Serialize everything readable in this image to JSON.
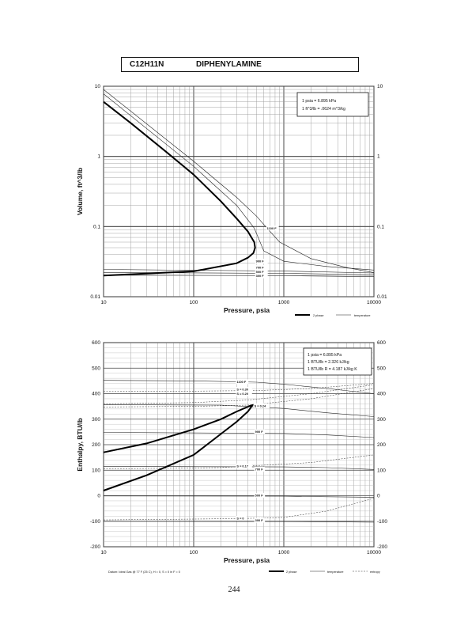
{
  "header": {
    "formula": "C12H11N",
    "compound": "DIPHENYLAMINE"
  },
  "page_number": "244",
  "chart_data": [
    {
      "type": "line",
      "x_scale": "log",
      "y_scale": "log",
      "xlim": [
        10,
        10000
      ],
      "ylim": [
        0.01,
        10
      ],
      "xlabel": "Pressure,  psia",
      "ylabel": "Volume, ft^3/lb",
      "x_ticks": [
        "10",
        "100",
        "1000",
        "10000"
      ],
      "y_ticks": [
        "0.01",
        "0.1",
        "1",
        "10"
      ],
      "y_ticks_right": [
        "0.01",
        "0.1",
        "1",
        "10"
      ],
      "grid": true,
      "notes": [
        "1 psia  =  6.895 kPa",
        "1 ft^3/lb  =  .0624 m^3/kg"
      ],
      "legend": [
        "2 phase",
        "temperature"
      ],
      "legend_position": "bottom-right",
      "labels": [
        "1100 F",
        "900 F",
        "700 F",
        "500 F",
        "300 F"
      ],
      "two_phase": [
        [
          10,
          6.0
        ],
        [
          20,
          3.0
        ],
        [
          50,
          1.15
        ],
        [
          100,
          0.55
        ],
        [
          200,
          0.23
        ],
        [
          300,
          0.13
        ],
        [
          400,
          0.085
        ],
        [
          470,
          0.06
        ],
        [
          480,
          0.05
        ],
        [
          460,
          0.042
        ],
        [
          400,
          0.036
        ],
        [
          300,
          0.03
        ],
        [
          100,
          0.023
        ],
        [
          10,
          0.02
        ]
      ],
      "series": [
        {
          "name": "1100 F",
          "points": [
            [
              10,
              9.0
            ],
            [
              100,
              0.85
            ],
            [
              300,
              0.26
            ],
            [
              500,
              0.14
            ],
            [
              650,
              0.095
            ],
            [
              900,
              0.06
            ],
            [
              2000,
              0.035
            ],
            [
              5000,
              0.026
            ],
            [
              10000,
              0.022
            ]
          ]
        },
        {
          "name": "900 F",
          "points": [
            [
              10,
              7.8
            ],
            [
              100,
              0.72
            ],
            [
              300,
              0.2
            ],
            [
              470,
              0.095
            ],
            [
              600,
              0.045
            ],
            [
              1000,
              0.032
            ],
            [
              3000,
              0.027
            ],
            [
              10000,
              0.024
            ]
          ]
        },
        {
          "name": "700 F",
          "points": [
            [
              10,
              0.0245
            ],
            [
              1000,
              0.0232
            ],
            [
              10000,
              0.0218
            ]
          ]
        },
        {
          "name": "500 F",
          "points": [
            [
              10,
              0.0222
            ],
            [
              1000,
              0.0215
            ],
            [
              10000,
              0.0206
            ]
          ]
        },
        {
          "name": "300 F",
          "points": [
            [
              10,
              0.0205
            ],
            [
              1000,
              0.0199
            ],
            [
              10000,
              0.0193
            ]
          ]
        }
      ]
    },
    {
      "type": "line",
      "x_scale": "log",
      "xlim": [
        10,
        10000
      ],
      "ylim": [
        -200,
        600
      ],
      "xlabel": "Pressure,  psia",
      "ylabel": "Enthalpy, BTU/lb",
      "x_ticks": [
        "10",
        "100",
        "1000",
        "10000"
      ],
      "y_ticks": [
        "-200",
        "-100",
        "0",
        "100",
        "200",
        "300",
        "400",
        "500",
        "600"
      ],
      "y_ticks_right": [
        "-200",
        "-100",
        "0",
        "100",
        "200",
        "300",
        "400",
        "500",
        "600"
      ],
      "grid": true,
      "notes": [
        "1 psia  =  6.895 kPa",
        "1 BTU/lb  =  2.326 kJ/kg",
        "1 BTU/lb R  =  4.187 kJ/kg K"
      ],
      "legend": [
        "2 phase",
        "temperature",
        "entropy"
      ],
      "legend_position": "bottom-right",
      "labels": [
        "1100 F",
        "S = 0.30",
        "S = 0.20",
        "S = 0.24",
        "900 F",
        "S = 0.17",
        "700 F",
        "500 F",
        "S = 0",
        "300 F"
      ],
      "datum": "Datum: Ideal Gas @ 77 F (25 C),  H = 0,  S = 0 in F = 0",
      "two_phase": [
        [
          10,
          170
        ],
        [
          30,
          205
        ],
        [
          100,
          260
        ],
        [
          200,
          300
        ],
        [
          300,
          330
        ],
        [
          420,
          352
        ],
        [
          450,
          355
        ],
        [
          400,
          330
        ],
        [
          300,
          290
        ],
        [
          100,
          160
        ],
        [
          30,
          80
        ],
        [
          10,
          20
        ]
      ],
      "series": [
        {
          "name": "1100 F",
          "points": [
            [
              10,
              452
            ],
            [
              100,
              450
            ],
            [
              500,
              445
            ],
            [
              1000,
              437
            ],
            [
              3000,
              420
            ],
            [
              10000,
              400
            ]
          ]
        },
        {
          "name": "900 F",
          "points": [
            [
              10,
              357
            ],
            [
              200,
              355
            ],
            [
              1000,
              342
            ],
            [
              3000,
              325
            ],
            [
              10000,
              310
            ]
          ]
        },
        {
          "name": "700 F",
          "points": [
            [
              10,
              248
            ],
            [
              1000,
              244
            ],
            [
              3000,
              238
            ],
            [
              10000,
              228
            ]
          ]
        },
        {
          "name": "500 F",
          "points": [
            [
              10,
              115
            ],
            [
              1000,
              113
            ],
            [
              3000,
              110
            ],
            [
              10000,
              103
            ]
          ]
        },
        {
          "name": "300 F",
          "points": [
            [
              10,
              -1
            ],
            [
              1000,
              -2
            ],
            [
              3000,
              -4
            ],
            [
              10000,
              -6
            ]
          ]
        },
        {
          "name": "100 F",
          "points": [
            [
              10,
              -100
            ],
            [
              1000,
              -101
            ],
            [
              3000,
              -102
            ],
            [
              10000,
              -104
            ]
          ]
        }
      ],
      "entropy_lines": [
        {
          "name": "S = 0.30",
          "points": [
            [
              10,
              408
            ],
            [
              100,
              410
            ],
            [
              500,
              412
            ],
            [
              2000,
              420
            ],
            [
              10000,
              440
            ]
          ]
        },
        {
          "name": "S = 0.20",
          "points": [
            [
              10,
              360
            ],
            [
              100,
              365
            ],
            [
              400,
              375
            ],
            [
              2000,
              400
            ],
            [
              10000,
              435
            ]
          ]
        },
        {
          "name": "S = 0.24",
          "points": [
            [
              10,
              348
            ],
            [
              100,
              350
            ],
            [
              400,
              355
            ],
            [
              2000,
              380
            ],
            [
              10000,
              420
            ]
          ]
        },
        {
          "name": "S = 0.17",
          "points": [
            [
              10,
              105
            ],
            [
              200,
              110
            ],
            [
              500,
              118
            ],
            [
              2000,
              130
            ],
            [
              10000,
              160
            ]
          ]
        },
        {
          "name": "S = 0",
          "points": [
            [
              10,
              -95
            ],
            [
              300,
              -90
            ],
            [
              1000,
              -85
            ],
            [
              3000,
              -60
            ],
            [
              10000,
              -10
            ]
          ]
        }
      ]
    }
  ]
}
